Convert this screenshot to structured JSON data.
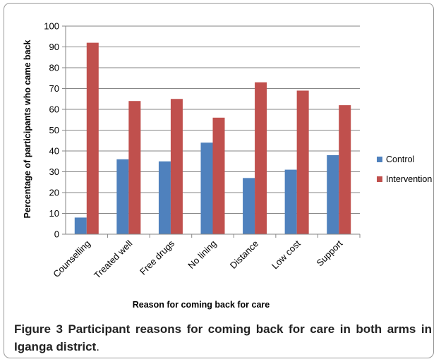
{
  "figure": {
    "caption_lead": "Figure 3",
    "caption_body": " Participant reasons for coming back for care in both arms in Iganga district",
    "caption_end": "."
  },
  "colors": {
    "control": "#4f81bd",
    "intervention": "#c0504d",
    "grid": "#868686",
    "axis_text": "#000000"
  },
  "chart_data": {
    "type": "bar",
    "title": "",
    "xlabel": "Reason for coming back for care",
    "ylabel": "Percentage of participants who came back",
    "categories": [
      "Counselling",
      "Treated well",
      "Free drugs",
      "No lining",
      "Distance",
      "Low cost",
      "Support"
    ],
    "series": [
      {
        "name": "Control",
        "values": [
          8,
          36,
          35,
          44,
          27,
          31,
          38
        ]
      },
      {
        "name": "Intervention",
        "values": [
          92,
          64,
          65,
          56,
          73,
          69,
          62
        ]
      }
    ],
    "ylim": [
      0,
      100
    ],
    "yticks": [
      0,
      10,
      20,
      30,
      40,
      50,
      60,
      70,
      80,
      90,
      100
    ],
    "grid": true,
    "legend_position": "right"
  }
}
